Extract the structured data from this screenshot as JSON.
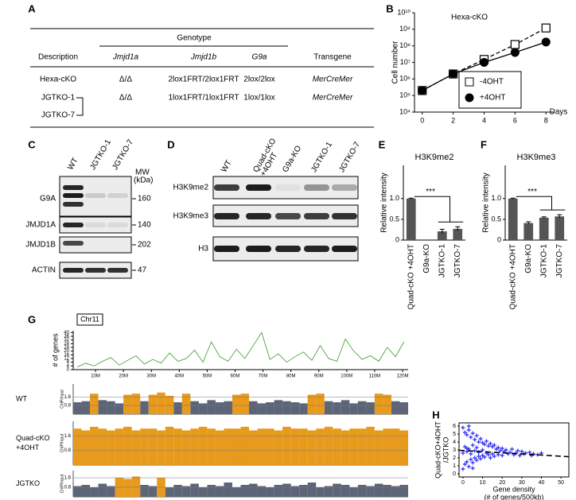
{
  "panel_labels": [
    "A",
    "B",
    "C",
    "D",
    "E",
    "F",
    "G",
    "H"
  ],
  "table": {
    "group_header": "Genotype",
    "headers": [
      "Description",
      "Jmjd1a",
      "Jmjd1b",
      "G9a",
      "Transgene"
    ],
    "rows": [
      [
        "Hexa-cKO",
        "Δ/Δ",
        "2lox1FRT/2lox1FRT",
        "2lox/2lox",
        "MerCreMer"
      ]
    ],
    "grouped_row": {
      "names": [
        "JGTKO-1",
        "JGTKO-7"
      ],
      "cells": [
        "Δ/Δ",
        "1lox1FRT/1lox1FRT",
        "1lox/1lox",
        "MerCreMer"
      ]
    }
  },
  "blot_c": {
    "lanes": [
      "WT",
      "JGTKO-1",
      "JGTKO-7"
    ],
    "mw_header": [
      "MW",
      "(kDa)"
    ],
    "rows": [
      {
        "label": "G9A",
        "mw": 160
      },
      {
        "label": "JMJD1A",
        "mw": 140
      },
      {
        "label": "JMJD1B",
        "mw": 202
      },
      {
        "label": "ACTIN",
        "mw": 47
      }
    ]
  },
  "blot_d": {
    "lanes": [
      [
        "WT"
      ],
      [
        "Quad-cKO",
        "+4OHT"
      ],
      [
        "G9a-KO"
      ],
      [
        "JGTKO-1"
      ],
      [
        "JGTKO-7"
      ]
    ],
    "rows": [
      "H3K9me2",
      "H3K9me3",
      "H3"
    ]
  },
  "chart_data": [
    {
      "type": "line",
      "title": "Hexa-cKO",
      "xlabel": "Days",
      "ylabel": "Cell number",
      "x": [
        0,
        2,
        4,
        6,
        8
      ],
      "xlim": [
        -0.5,
        8.5
      ],
      "xticks": [
        0,
        2,
        4,
        6,
        8
      ],
      "log_y": true,
      "ylim": [
        10000,
        10000000000
      ],
      "yticks": [
        {
          "value": 10000,
          "label": "10⁴"
        },
        {
          "value": 100000,
          "label": "10⁵"
        },
        {
          "value": 1000000,
          "label": "10⁶"
        },
        {
          "value": 10000000,
          "label": "10⁷"
        },
        {
          "value": 100000000,
          "label": "10⁸"
        },
        {
          "value": 1000000000,
          "label": "10⁹"
        },
        {
          "value": 10000000000,
          "label": "10¹⁰"
        }
      ],
      "legend": "lower right",
      "series": [
        {
          "name": "-4OHT",
          "color": "#000000",
          "marker": "square",
          "dashed": true,
          "values": [
            200000,
            2000000,
            15000000,
            120000000,
            1200000000
          ]
        },
        {
          "name": "+4OHT",
          "color": "#000000",
          "marker": "circle",
          "dashed": false,
          "values": [
            200000,
            2000000,
            10000000,
            40000000,
            170000000
          ]
        }
      ]
    },
    {
      "type": "bar",
      "title": "H3K9me2",
      "ylabel": "Relative intensity",
      "annotation": "***",
      "color": "#555555",
      "categories": [
        "Quad-cKO +4OHT",
        "G9a-KO",
        "JGTKO-1",
        "JGTKO-7"
      ],
      "values": [
        1,
        0,
        0.21,
        0.27
      ],
      "errors": [
        0.01,
        0,
        0.05,
        0.05
      ],
      "ylim": [
        0,
        1.8
      ],
      "yticks": [
        0,
        0.5,
        {
          "value": 1,
          "label": "1.0"
        }
      ]
    },
    {
      "type": "bar",
      "title": "H3K9me3",
      "ylabel": "Relative intensity",
      "annotation": "***",
      "color": "#555555",
      "categories": [
        "Quad-cKO +4OHT",
        "G9a-KO",
        "JGTKO-1",
        "JGTKO-7"
      ],
      "values": [
        1,
        0.41,
        0.54,
        0.57
      ],
      "errors": [
        0.01,
        0.03,
        0.02,
        0.04
      ],
      "ylim": [
        0,
        1.8
      ],
      "yticks": [
        0,
        0.5,
        {
          "value": 1,
          "label": "1.0"
        }
      ]
    },
    {
      "type": "line",
      "ylabel": "# of genes",
      "annotation": "Chr11",
      "x": [
        3.5,
        6.5,
        9.5,
        12.5,
        15.5,
        18.5,
        21.5,
        24.5,
        27.5,
        30.5,
        33.5,
        36.5,
        39.5,
        42.5,
        45.5,
        48.5,
        51.5,
        54.5,
        57.5,
        60.5,
        63.5,
        66.5,
        69.5,
        72.5,
        75.5,
        78.5,
        81.5,
        84.5,
        87.5,
        90.5,
        93.5,
        96.5,
        99.5,
        102.5,
        105.5,
        108.5,
        111.5,
        114.5,
        117.5,
        120.5
      ],
      "xlim": [
        2,
        122
      ],
      "xticks": [
        {
          "value": 10,
          "label": "10M"
        },
        {
          "value": 20,
          "label": "20M"
        },
        {
          "value": 30,
          "label": "30M"
        },
        {
          "value": 40,
          "label": "40M"
        },
        {
          "value": 50,
          "label": "50M"
        },
        {
          "value": 60,
          "label": "60M"
        },
        {
          "value": 70,
          "label": "70M"
        },
        {
          "value": 80,
          "label": "80M"
        },
        {
          "value": 90,
          "label": "90M"
        },
        {
          "value": 100,
          "label": "100M"
        },
        {
          "value": 110,
          "label": "110M"
        },
        {
          "value": 120,
          "label": "120M"
        }
      ],
      "ylim": [
        0,
        42
      ],
      "yticks": [
        0,
        4,
        8,
        12,
        16,
        20,
        24,
        28,
        32,
        36,
        40
      ],
      "series": [
        {
          "color": "#3a9a2a",
          "values": [
            3,
            7,
            4,
            9,
            13,
            5,
            10,
            15,
            6,
            11,
            7,
            18,
            9,
            12,
            21,
            8,
            30,
            14,
            9,
            22,
            12,
            26,
            40,
            11,
            17,
            8,
            14,
            19,
            10,
            26,
            12,
            9,
            33,
            20,
            11,
            15,
            9,
            24,
            14,
            30
          ]
        }
      ]
    },
    {
      "type": "track",
      "ylabel": "ChIP/Input",
      "bins": [
        2,
        5,
        8,
        11,
        14,
        17,
        20,
        23,
        26,
        29,
        32,
        35,
        38,
        41,
        44,
        47,
        50,
        53,
        56,
        59,
        62,
        65,
        68,
        71,
        74,
        77,
        80,
        83,
        86,
        89,
        92,
        95,
        98,
        101,
        104,
        107,
        110,
        113,
        116,
        119,
        122
      ],
      "tracks": [
        {
          "label": [
            "WT"
          ],
          "ylim": [
            0,
            2.8
          ],
          "yticks": [
            0.8,
            1.6
          ],
          "series": [
            {
              "color": "#5c6478",
              "values": [
                1.1,
                1.2,
                null,
                1.3,
                1.2,
                1.0,
                null,
                null,
                1.2,
                null,
                null,
                null,
                1.1,
                null,
                1.2,
                1.0,
                1.3,
                1.1,
                1.2,
                null,
                null,
                1.2,
                1.0,
                1.1,
                1.3,
                1.2,
                1.1,
                1.0,
                null,
                null,
                1.2,
                1.1,
                1.3,
                1.0,
                1.2,
                1.1,
                null,
                null,
                1.2,
                1.1
              ]
            },
            {
              "color": "#e79a1c",
              "values": [
                null,
                null,
                1.9,
                null,
                null,
                null,
                1.8,
                1.9,
                null,
                1.8,
                2.0,
                1.7,
                null,
                1.9,
                null,
                null,
                null,
                null,
                null,
                1.8,
                1.9,
                null,
                null,
                null,
                null,
                null,
                null,
                null,
                1.8,
                1.9,
                null,
                null,
                null,
                null,
                null,
                null,
                1.9,
                1.8,
                null,
                null
              ]
            }
          ]
        },
        {
          "label": [
            "Quad-cKO",
            "+4OHT"
          ],
          "ylim": [
            0,
            2.4
          ],
          "yticks": [
            0.8,
            1.6
          ],
          "series": [
            {
              "color": "#e79a1c",
              "values": [
                2.0,
                1.9,
                2.1,
                2.0,
                1.9,
                2.0,
                2.1,
                1.9,
                2.0,
                2.0,
                1.9,
                2.1,
                2.0,
                1.9,
                2.0,
                2.1,
                2.0,
                1.9,
                2.0,
                2.0,
                2.1,
                1.9,
                2.0,
                2.0,
                1.9,
                2.1,
                2.0,
                2.0,
                1.9,
                2.0,
                2.1,
                2.0,
                1.9,
                2.0,
                2.0,
                2.1,
                1.9,
                2.0,
                2.0,
                1.9
              ]
            }
          ]
        },
        {
          "label": [
            "JGTKO"
          ],
          "ylim": [
            0,
            2.2
          ],
          "yticks": [
            0.8,
            1.6
          ],
          "series": [
            {
              "color": "#5c6478",
              "values": [
                0.9,
                1.0,
                0.8,
                1.1,
                0.9,
                null,
                null,
                null,
                1.0,
                0.9,
                null,
                0.8,
                1.0,
                0.9,
                1.1,
                0.8,
                1.0,
                0.9,
                1.2,
                0.8,
                1.0,
                1.1,
                0.9,
                0.8,
                1.0,
                1.1,
                0.9,
                1.0,
                1.2,
                0.8,
                0.9,
                1.1,
                1.0,
                0.8,
                1.0,
                0.9,
                1.1,
                1.0,
                0.9,
                1.0
              ]
            },
            {
              "color": "#e79a1c",
              "values": [
                null,
                null,
                null,
                null,
                null,
                1.6,
                1.5,
                1.7,
                null,
                null,
                1.6,
                null,
                null,
                null,
                null,
                null,
                null,
                null,
                null,
                null,
                null,
                null,
                null,
                null,
                null,
                null,
                null,
                null,
                null,
                null,
                null,
                null,
                null,
                null,
                null,
                null,
                null,
                null,
                null,
                null
              ]
            }
          ]
        }
      ]
    },
    {
      "type": "scatter",
      "ylabel": [
        "Quad-cKO+4OHT",
        "/JGTKO"
      ],
      "xlabel": [
        "Gene density",
        "(# of genes/500kb)"
      ],
      "color": "#2b2bf0",
      "x": [
        0,
        0,
        1,
        1,
        1,
        2,
        2,
        2,
        3,
        3,
        3,
        4,
        4,
        4,
        5,
        5,
        5,
        6,
        6,
        6,
        7,
        7,
        7,
        8,
        8,
        8,
        9,
        9,
        10,
        10,
        10,
        11,
        11,
        12,
        12,
        13,
        13,
        14,
        14,
        15,
        15,
        16,
        16,
        17,
        18,
        18,
        19,
        20,
        20,
        21,
        22,
        23,
        24,
        25,
        26,
        27,
        28,
        29,
        30,
        31,
        32,
        34,
        35,
        36,
        38,
        40,
        0,
        2,
        5,
        3
      ],
      "y": [
        5.8,
        0.6,
        5.2,
        1.2,
        3.4,
        4.9,
        1.5,
        2.8,
        5.5,
        0.9,
        3.1,
        4.6,
        1.8,
        2.5,
        5.1,
        1.4,
        3.6,
        4.3,
        2.0,
        2.9,
        4.8,
        1.7,
        3.3,
        4.0,
        2.2,
        2.7,
        4.4,
        1.9,
        3.9,
        2.3,
        3.0,
        3.7,
        2.1,
        4.1,
        2.6,
        3.5,
        2.4,
        3.8,
        2.0,
        3.4,
        2.5,
        3.6,
        2.2,
        3.1,
        3.3,
        2.4,
        2.9,
        3.2,
        2.3,
        2.8,
        3.0,
        2.5,
        2.7,
        3.1,
        2.4,
        2.6,
        2.9,
        2.3,
        2.8,
        2.5,
        2.6,
        2.7,
        2.3,
        2.5,
        2.4,
        2.6,
        2.6,
        3.2,
        0.7,
        6.0
      ],
      "xlim": [
        -2,
        54
      ],
      "xticks": [
        0,
        10,
        20,
        30,
        40,
        50
      ],
      "ylim": [
        -0.4,
        6.4
      ],
      "yticks": [
        0,
        1,
        2,
        3,
        4,
        5,
        6
      ],
      "trend_line": {
        "x": [
          -2,
          54
        ],
        "y": [
          2.95,
          2.15
        ]
      }
    }
  ]
}
